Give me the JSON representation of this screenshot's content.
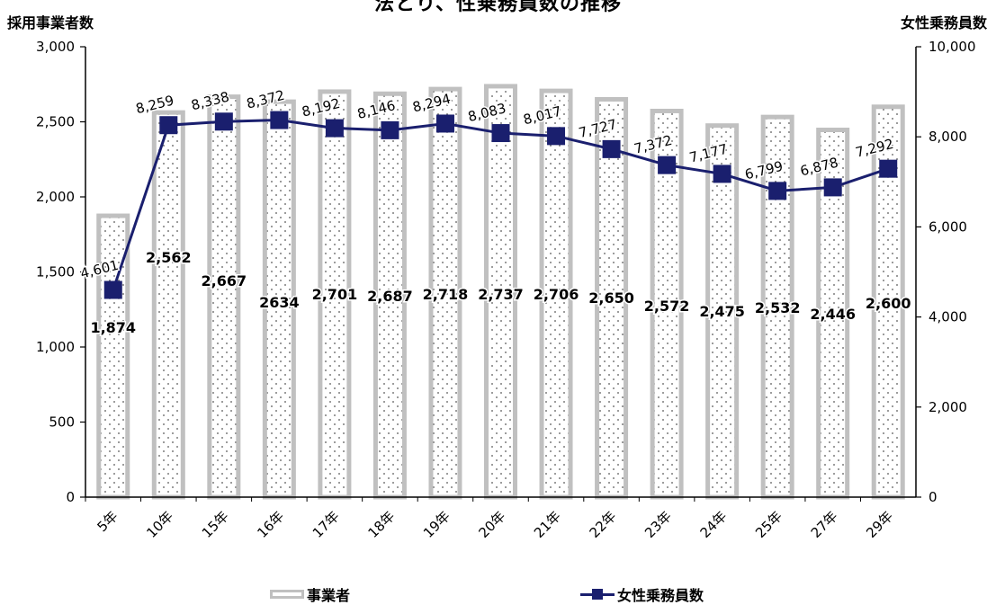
{
  "chart_data": {
    "type": "bar",
    "title": "法とり、性乗務員数の推移",
    "ylabel_left": "採用事業者数",
    "ylabel_right": "女性乗務員数",
    "ylim_left": [
      0,
      3000
    ],
    "ylim_right": [
      0,
      10000
    ],
    "yticks_left": [
      "0",
      "500",
      "1,000",
      "1,500",
      "2,000",
      "2,500",
      "3,000"
    ],
    "yticks_right": [
      "0",
      "2,000",
      "4,000",
      "6,000",
      "8,000",
      "10,000"
    ],
    "categories": [
      "5年",
      "10年",
      "15年",
      "16年",
      "17年",
      "18年",
      "19年",
      "20年",
      "21年",
      "22年",
      "23年",
      "24年",
      "25年",
      "27年",
      "29年"
    ],
    "series": [
      {
        "name": "事業者",
        "type": "bar",
        "axis": "left",
        "color": "#c0c0c0",
        "values": [
          1874,
          2562,
          2667,
          2634,
          2701,
          2687,
          2718,
          2737,
          2706,
          2650,
          2572,
          2475,
          2532,
          2446,
          2600
        ],
        "labels": [
          "1,874",
          "2,562",
          "2,667",
          "2634",
          "2,701",
          "2,687",
          "2,718",
          "2,737",
          "2,706",
          "2,650",
          "2,572",
          "2,475",
          "2,532",
          "2,446",
          "2,600"
        ]
      },
      {
        "name": "女性乗務員数",
        "type": "line",
        "axis": "right",
        "color": "#1a1f6e",
        "values": [
          4601,
          8259,
          8338,
          8372,
          8192,
          8146,
          8294,
          8083,
          8017,
          7727,
          7372,
          7177,
          6799,
          6878,
          7292
        ],
        "labels": [
          "4,601",
          "8,259",
          "8,338",
          "8,372",
          "8,192",
          "8,146",
          "8,294",
          "8,083",
          "8,017",
          "7,727",
          "7,372",
          "7,177",
          "6,799",
          "6,878",
          "7,292"
        ]
      }
    ],
    "legend_position": "bottom",
    "grid": false
  }
}
